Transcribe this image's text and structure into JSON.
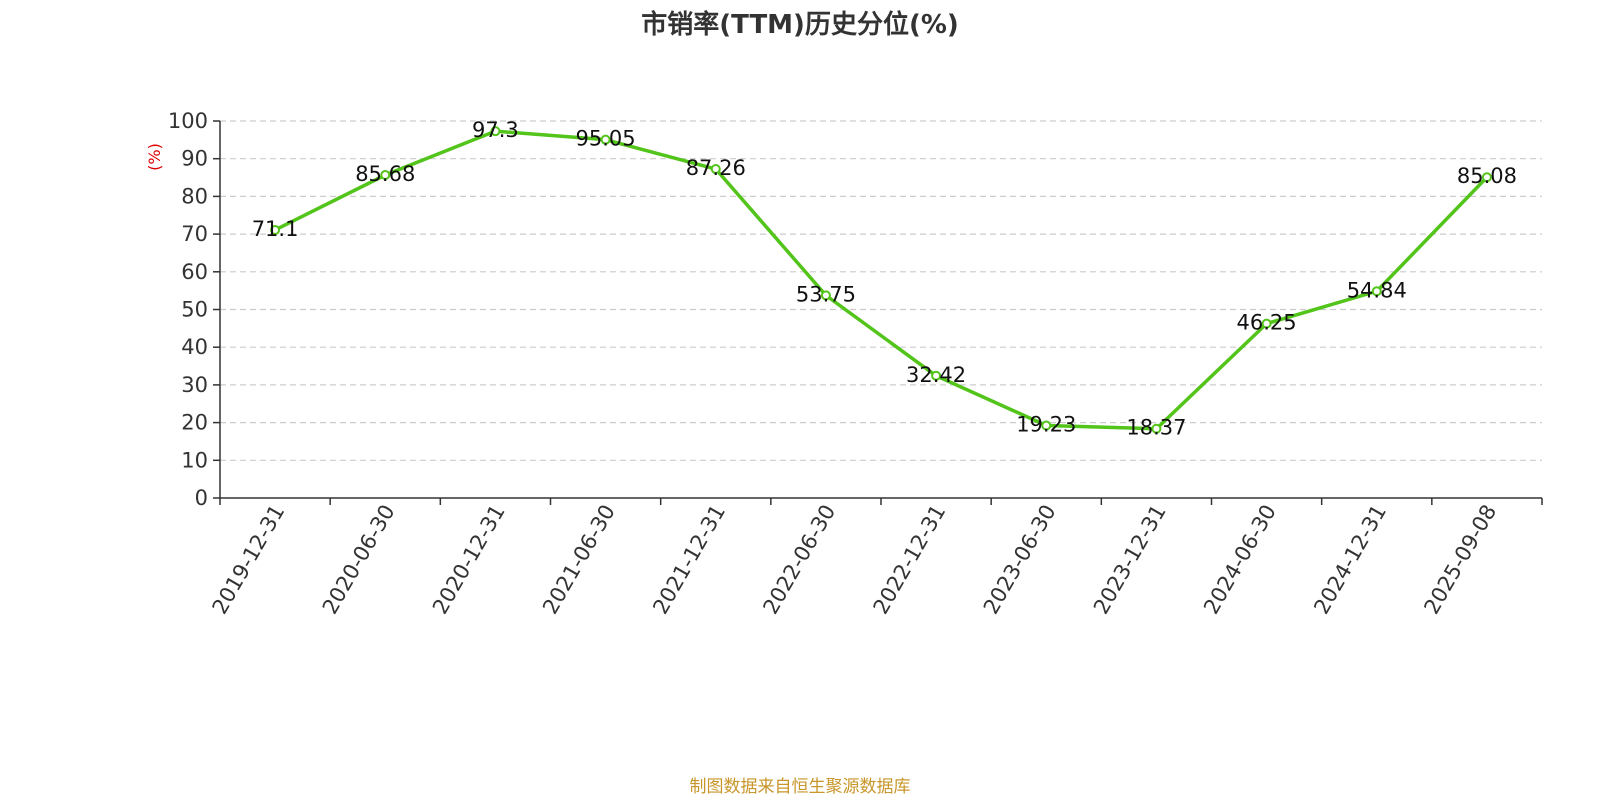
{
  "chart_data": {
    "type": "line",
    "title": "市销率(TTM)历史分位(%)",
    "ylabel": "(%)",
    "xlabel": "",
    "ylim": [
      0,
      100
    ],
    "yticks": [
      0,
      10,
      20,
      30,
      40,
      50,
      60,
      70,
      80,
      90,
      100
    ],
    "grid": true,
    "categories": [
      "2019-12-31",
      "2020-06-30",
      "2020-12-31",
      "2021-06-30",
      "2021-12-31",
      "2022-06-30",
      "2022-12-31",
      "2023-06-30",
      "2023-12-31",
      "2024-06-30",
      "2024-12-31",
      "2025-09-08"
    ],
    "series": [
      {
        "values": [
          71.1,
          85.68,
          97.3,
          95.05,
          87.26,
          53.75,
          32.42,
          19.23,
          18.37,
          46.25,
          54.84,
          85.08
        ],
        "labels": [
          "71.1",
          "85.68",
          "97.3",
          "95.05",
          "87.26",
          "53.75",
          "32.42",
          "19.23",
          "18.37",
          "46.25",
          "54.84",
          "85.08"
        ],
        "color": "#52c41a"
      }
    ],
    "source": "制图数据来自恒生聚源数据库"
  }
}
